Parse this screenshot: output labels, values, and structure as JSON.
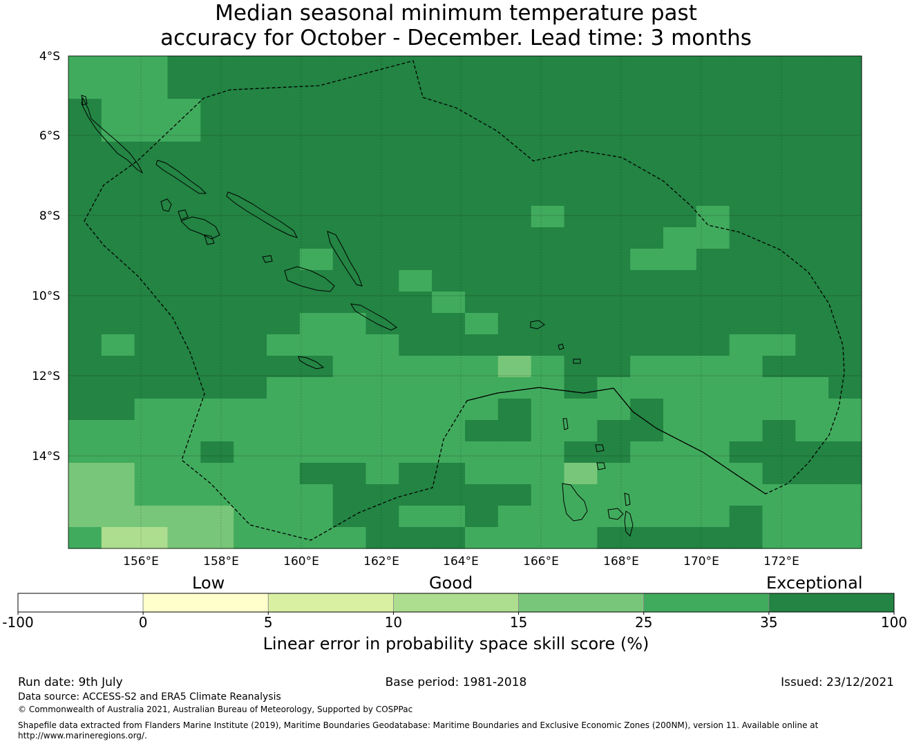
{
  "title": {
    "line1": "Median seasonal minimum temperature past",
    "line2": "accuracy for October - December. Lead time: 3 months"
  },
  "map": {
    "lat_ticks": [
      "4°S",
      "6°S",
      "8°S",
      "10°S",
      "12°S",
      "14°S"
    ],
    "lon_ticks": [
      "156°E",
      "158°E",
      "160°E",
      "162°E",
      "164°E",
      "166°E",
      "168°E",
      "170°E",
      "172°E"
    ],
    "extent": {
      "lon_min": 154.2,
      "lon_max": 173.9,
      "lat_min": -16.3,
      "lat_max": -4.0
    },
    "grid_colors": [
      "#ffffff",
      "#ffffcc",
      "#d9f0a3",
      "#addd8e",
      "#78c679",
      "#41ab5d",
      "#238443"
    ]
  },
  "colorbar": {
    "categories": [
      "Low",
      "Good",
      "Exceptional"
    ],
    "ticks": [
      "-100",
      "0",
      "5",
      "10",
      "15",
      "25",
      "35",
      "100"
    ],
    "colors": [
      "#ffffff",
      "#ffffcc",
      "#d9f0a3",
      "#addd8e",
      "#78c679",
      "#41ab5d",
      "#238443"
    ],
    "label": "Linear error in probability space skill score (%)"
  },
  "footer": {
    "run_date": "Run date: 9th July",
    "base_period": "Base period: 1981-2018",
    "issued": "Issued: 23/12/2021",
    "data_source": "Data source: ACCESS-S2 and ERA5 Climate Reanalysis",
    "copyright": "© Commonwealth of Australia 2021, Australian Bureau of Meteorology, Supported by COSPPac",
    "shapefile1": "Shapefile data extracted from Flanders Marine Institute (2019), Maritime Boundaries Geodatabase: Maritime Boundaries and Exclusive Economic Zones (200NM), version 11. Available online at",
    "shapefile2": "http://www.marineregions.org/."
  }
}
